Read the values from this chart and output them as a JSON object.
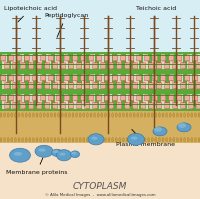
{
  "bg_color": "#d8eef5",
  "cytoplasm_color": "#f5e2c8",
  "plasma_membrane_top_color": "#c8b870",
  "plasma_membrane_body_color": "#d4b060",
  "plasma_membrane_dots_color": "#b89040",
  "pg_green_light": "#5aaa3a",
  "pg_green_dark": "#3a8020",
  "pg_stripe_green": "#72b84a",
  "pg_pink": "#e8b0a0",
  "pg_white": "#f0e0d8",
  "pg_red": "#c04030",
  "teichoic_brown": "#7a4a20",
  "membrane_protein_blue_light": "#90c0e0",
  "membrane_protein_blue_mid": "#60a0c8",
  "membrane_protein_blue_dark": "#3a7aaa",
  "cytoplasm_text_color": "#555555",
  "label_color": "#111111",
  "copyright_color": "#333333",
  "labels": {
    "lipoteichoic_acid": "Lipoteichoic acid",
    "peptidoglycan": "Peptidoglycan",
    "teichoic_acid": "Teichoic acid",
    "membrane_proteins": "Membrane proteins",
    "plasma_membrane": "Plasma membrane",
    "cytoplasm": "CYTOPLASM"
  },
  "copyright": "© Alila Medical Images  -  www.alilamedicaliimages.com"
}
